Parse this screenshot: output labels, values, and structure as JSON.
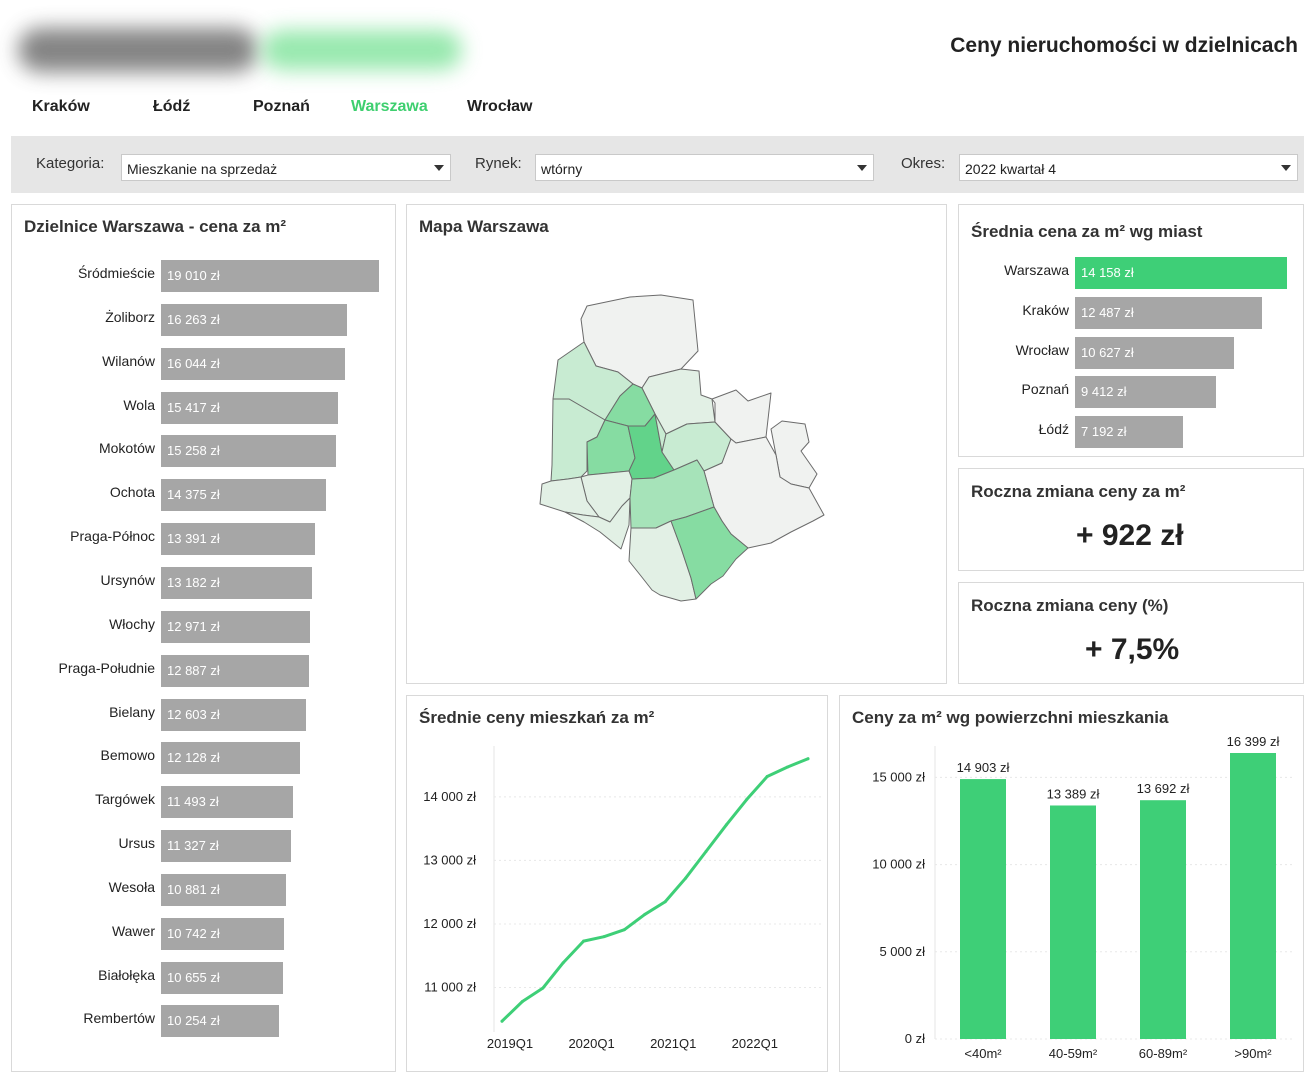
{
  "header": {
    "title": "Ceny nieruchomości w dzielnicach"
  },
  "city_tabs": [
    {
      "label": "Kraków",
      "active": false
    },
    {
      "label": "Łódź",
      "active": false
    },
    {
      "label": "Poznań",
      "active": false
    },
    {
      "label": "Warszawa",
      "active": true
    },
    {
      "label": "Wrocław",
      "active": false
    }
  ],
  "filters": {
    "category": {
      "label": "Kategoria:",
      "value": "Mieszkanie na sprzedaż"
    },
    "market": {
      "label": "Rynek:",
      "value": "wtórny"
    },
    "period": {
      "label": "Okres:",
      "value": "2022 kwartał 4"
    }
  },
  "districts_panel": {
    "title": "Dzielnice Warszawa - cena za m²",
    "chart_data": {
      "type": "bar",
      "orientation": "horizontal",
      "categories": [
        "Śródmieście",
        "Żoliborz",
        "Wilanów",
        "Wola",
        "Mokotów",
        "Ochota",
        "Praga-Północ",
        "Ursynów",
        "Włochy",
        "Praga-Południe",
        "Bielany",
        "Bemowo",
        "Targówek",
        "Ursus",
        "Wesoła",
        "Wawer",
        "Białołęka",
        "Rembertów"
      ],
      "values": [
        19010,
        16263,
        16044,
        15417,
        15258,
        14375,
        13391,
        13182,
        12971,
        12887,
        12603,
        12128,
        11493,
        11327,
        10881,
        10742,
        10655,
        10254
      ],
      "value_labels": [
        "19 010 zł",
        "16 263 zł",
        "16 044 zł",
        "15 417 zł",
        "15 258 zł",
        "14 375 zł",
        "13 391 zł",
        "13 182 zł",
        "12 971 zł",
        "12 887 zł",
        "12 603 zł",
        "12 128 zł",
        "11 493 zł",
        "11 327 zł",
        "10 881 zł",
        "10 742 zł",
        "10 655 zł",
        "10 254 zł"
      ],
      "bar_color": "#a6a6a6"
    }
  },
  "map_panel": {
    "title": "Mapa Warszawa",
    "palette": [
      "#f0f2f0",
      "#e2f0e5",
      "#c8ebd2",
      "#a6e3b9",
      "#86dca2",
      "#62d38a"
    ]
  },
  "cities_panel": {
    "title": "Średnia cena za m² wg miast",
    "chart_data": {
      "type": "bar",
      "orientation": "horizontal",
      "categories": [
        "Warszawa",
        "Kraków",
        "Wrocław",
        "Poznań",
        "Łódź"
      ],
      "values": [
        14158,
        12487,
        10627,
        9412,
        7192
      ],
      "value_labels": [
        "14 158 zł",
        "12 487 zł",
        "10 627 zł",
        "9 412 zł",
        "7 192 zł"
      ],
      "highlight": "Warszawa",
      "highlight_color": "#3ecf77",
      "bar_color": "#a6a6a6"
    }
  },
  "kpi_change_pln": {
    "title": "Roczna zmiana ceny za m²",
    "value": "+ 922 zł"
  },
  "kpi_change_pct": {
    "title": "Roczna zmiana ceny (%)",
    "value": "+ 7,5%"
  },
  "trend_panel": {
    "title": "Średnie ceny mieszkań za m²",
    "chart_data": {
      "type": "line",
      "x": [
        "2019Q1",
        "2019Q2",
        "2019Q3",
        "2019Q4",
        "2020Q1",
        "2020Q2",
        "2020Q3",
        "2020Q4",
        "2021Q1",
        "2021Q2",
        "2021Q3",
        "2021Q4",
        "2022Q1",
        "2022Q2",
        "2022Q3",
        "2022Q4"
      ],
      "series": [
        {
          "values": [
            10470,
            10780,
            10990,
            11390,
            11730,
            11800,
            11910,
            12150,
            12350,
            12720,
            13140,
            13560,
            13960,
            14320,
            14470,
            14600
          ]
        }
      ],
      "x_tick_labels": [
        "2019Q1",
        "2020Q1",
        "2021Q1",
        "2022Q1"
      ],
      "y_ticks": [
        11000,
        12000,
        13000,
        14000
      ],
      "y_tick_labels": [
        "11 000 zł",
        "12 000 zł",
        "13 000 zł",
        "14 000 zł"
      ],
      "ylim": [
        10300,
        14800
      ],
      "line_color": "#3ecf77"
    }
  },
  "size_panel": {
    "title": "Ceny za m² wg powierzchni mieszkania",
    "chart_data": {
      "type": "bar",
      "categories": [
        "<40m²",
        "40-59m²",
        "60-89m²",
        ">90m²"
      ],
      "values": [
        14903,
        13389,
        13692,
        16399
      ],
      "value_labels": [
        "14 903 zł",
        "13 389 zł",
        "13 692 zł",
        "16 399 zł"
      ],
      "y_ticks": [
        0,
        5000,
        10000,
        15000
      ],
      "y_tick_labels": [
        "0 zł",
        "5 000 zł",
        "10 000 zł",
        "15 000 zł"
      ],
      "ylim": [
        0,
        16800
      ],
      "bar_color": "#3ecf77"
    }
  }
}
